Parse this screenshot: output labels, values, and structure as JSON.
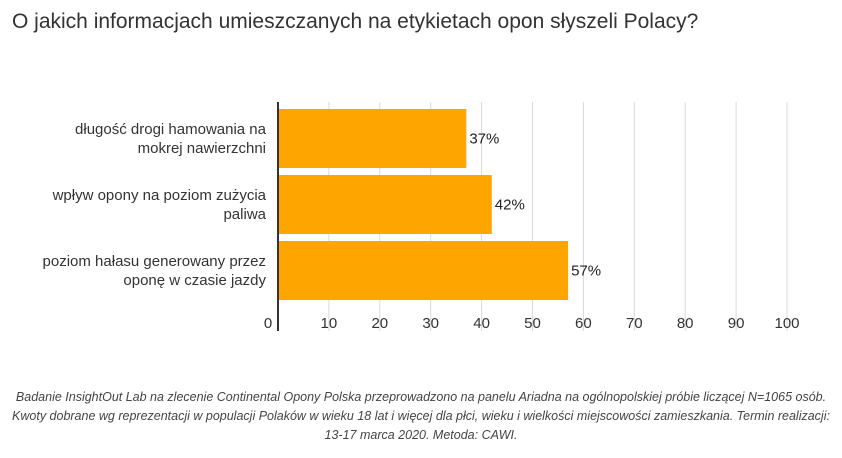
{
  "title": "O jakich informacjach umieszczanych na etykietach opon słyszeli Polacy?",
  "footnote": "Badanie InsightOut Lab na zlecenie Continental Opony Polska przeprowadzono na panelu Ariadna na ogólnopolskiej próbie liczącej N=1065 osób. Kwoty dobrane wg reprezentacji w populacji Polaków w wieku 18 lat i więcej dla płci, wieku i wielkości miejscowości zamieszkania. Termin realizacji: 13-17 marca 2020. Metoda: CAWI.",
  "colors": {
    "bar": "#FFA500",
    "grid": "#d9d9d9",
    "axis": "#333333"
  },
  "chart_data": {
    "type": "bar",
    "orientation": "horizontal",
    "categories": [
      [
        "długość drogi hamowania na",
        "mokrej nawierzchni"
      ],
      [
        "wpływ opony na poziom zużycia",
        "paliwa"
      ],
      [
        "poziom hałasu generowany przez",
        "oponę w czasie jazdy"
      ]
    ],
    "values": [
      37,
      42,
      57
    ],
    "data_labels": [
      "37%",
      "42%",
      "57%"
    ],
    "xlim": [
      0,
      100
    ],
    "xticks": [
      0,
      10,
      20,
      30,
      40,
      50,
      60,
      70,
      80,
      90,
      100
    ],
    "grid": true,
    "legend": "none"
  }
}
